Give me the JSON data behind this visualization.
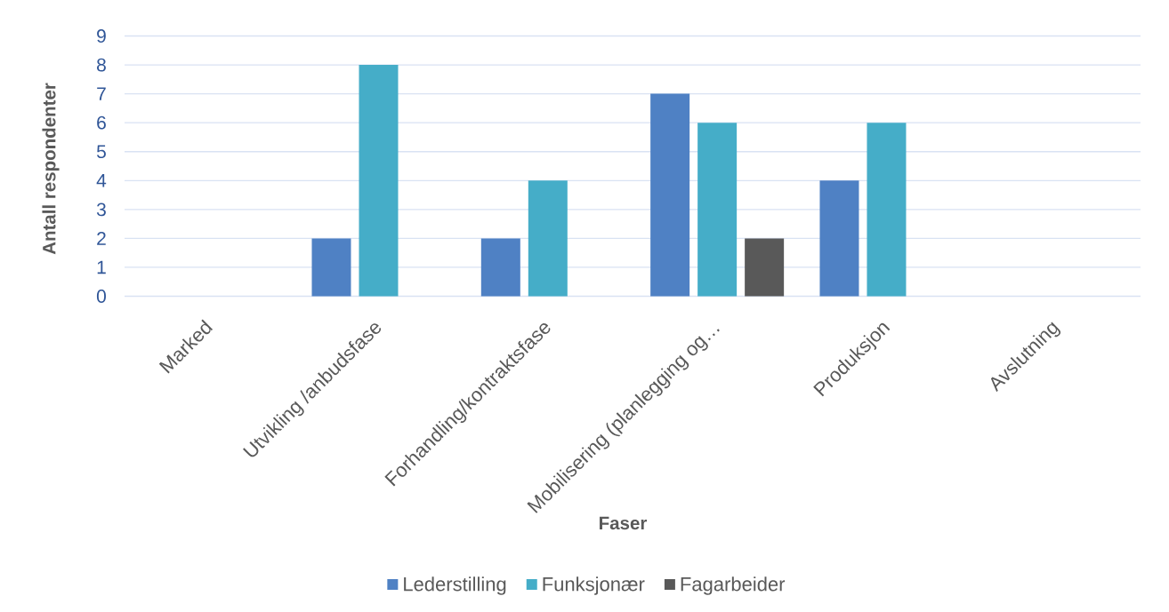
{
  "chart_data": {
    "type": "bar",
    "categories": [
      "Marked",
      "Utvikling /anbudsfase",
      "Forhandling/kontraktsfase",
      "Mobilisering (planlegging og…",
      "Produksjon",
      "Avslutning"
    ],
    "series": [
      {
        "name": "Lederstilling",
        "color": "#4f81c4",
        "values": [
          0,
          2,
          2,
          7,
          4,
          0
        ]
      },
      {
        "name": "Funksjonær",
        "color": "#45adc8",
        "values": [
          0,
          8,
          4,
          6,
          6,
          0
        ]
      },
      {
        "name": "Fagarbeider",
        "color": "#595959",
        "values": [
          0,
          0,
          0,
          2,
          0,
          0
        ]
      }
    ],
    "xlabel": "Faser",
    "ylabel": "Antall respondenter",
    "ylim": [
      0,
      9
    ],
    "yticks": [
      0,
      1,
      2,
      3,
      4,
      5,
      6,
      7,
      8,
      9
    ],
    "grid": "y",
    "legend": "bottom"
  }
}
